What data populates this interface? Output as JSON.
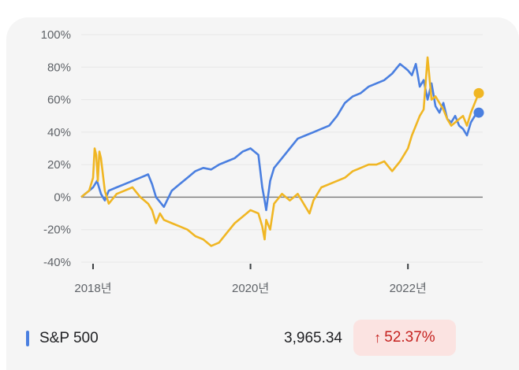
{
  "colors": {
    "series_blue": "#4a7fe0",
    "series_gold": "#f0b623",
    "grid": "#e6e6e6",
    "zero_line": "#777777"
  },
  "legend": {
    "name": "S&P 500",
    "value": "3,965.34",
    "change": "52.37%",
    "change_icon": "arrow-up-icon"
  },
  "chart_data": {
    "type": "line",
    "xlabel": "",
    "ylabel": "",
    "ylim": [
      -40,
      100
    ],
    "y_ticks": [
      "100%",
      "80%",
      "60%",
      "40%",
      "20%",
      "0%",
      "-20%",
      "-40%"
    ],
    "x_ticks": [
      {
        "label": "2018년",
        "x": 2018.0
      },
      {
        "label": "2020년",
        "x": 2020.0
      },
      {
        "label": "2022년",
        "x": 2022.0
      }
    ],
    "xlim": [
      2017.85,
      2022.95
    ],
    "grid": true,
    "series": [
      {
        "color": "#4a7fe0",
        "x": [
          2017.85,
          2017.9,
          2017.95,
          2018.0,
          2018.05,
          2018.1,
          2018.15,
          2018.2,
          2018.3,
          2018.4,
          2018.5,
          2018.6,
          2018.7,
          2018.75,
          2018.8,
          2018.85,
          2018.9,
          2019.0,
          2019.1,
          2019.2,
          2019.3,
          2019.4,
          2019.5,
          2019.6,
          2019.7,
          2019.8,
          2019.9,
          2020.0,
          2020.1,
          2020.15,
          2020.18,
          2020.2,
          2020.25,
          2020.3,
          2020.4,
          2020.5,
          2020.6,
          2020.7,
          2020.8,
          2020.9,
          2021.0,
          2021.1,
          2021.2,
          2021.3,
          2021.4,
          2021.5,
          2021.6,
          2021.7,
          2021.8,
          2021.9,
          2021.95,
          2022.0,
          2022.05,
          2022.1,
          2022.15,
          2022.2,
          2022.25,
          2022.3,
          2022.35,
          2022.4,
          2022.45,
          2022.5,
          2022.55,
          2022.6,
          2022.65,
          2022.7,
          2022.75,
          2022.8,
          2022.85,
          2022.9
        ],
        "values": [
          0,
          2,
          4,
          6,
          10,
          2,
          -2,
          4,
          6,
          8,
          10,
          12,
          14,
          8,
          0,
          -3,
          -6,
          4,
          8,
          12,
          16,
          18,
          17,
          20,
          22,
          24,
          28,
          30,
          26,
          6,
          -2,
          -8,
          10,
          18,
          24,
          30,
          36,
          38,
          40,
          42,
          44,
          50,
          58,
          62,
          64,
          68,
          70,
          72,
          76,
          82,
          80,
          78,
          75,
          82,
          68,
          72,
          60,
          70,
          56,
          52,
          58,
          48,
          46,
          50,
          44,
          42,
          38,
          46,
          50,
          52
        ]
      },
      {
        "color": "#f0b623",
        "x": [
          2017.85,
          2017.9,
          2017.95,
          2018.0,
          2018.02,
          2018.04,
          2018.06,
          2018.08,
          2018.1,
          2018.15,
          2018.2,
          2018.3,
          2018.4,
          2018.5,
          2018.6,
          2018.7,
          2018.75,
          2018.8,
          2018.85,
          2018.9,
          2019.0,
          2019.1,
          2019.2,
          2019.3,
          2019.4,
          2019.5,
          2019.6,
          2019.7,
          2019.8,
          2019.9,
          2020.0,
          2020.1,
          2020.15,
          2020.18,
          2020.2,
          2020.25,
          2020.3,
          2020.4,
          2020.5,
          2020.6,
          2020.7,
          2020.75,
          2020.8,
          2020.9,
          2021.0,
          2021.1,
          2021.2,
          2021.3,
          2021.4,
          2021.5,
          2021.6,
          2021.7,
          2021.8,
          2021.9,
          2021.95,
          2022.0,
          2022.05,
          2022.1,
          2022.15,
          2022.2,
          2022.25,
          2022.3,
          2022.35,
          2022.4,
          2022.45,
          2022.5,
          2022.55,
          2022.6,
          2022.65,
          2022.7,
          2022.75,
          2022.8,
          2022.85,
          2022.9
        ],
        "values": [
          0,
          2,
          4,
          12,
          30,
          26,
          10,
          28,
          24,
          4,
          -4,
          2,
          4,
          6,
          0,
          -4,
          -8,
          -16,
          -10,
          -14,
          -16,
          -18,
          -20,
          -24,
          -26,
          -30,
          -28,
          -22,
          -16,
          -12,
          -8,
          -10,
          -18,
          -26,
          -14,
          -20,
          -4,
          2,
          -2,
          2,
          -6,
          -10,
          -2,
          6,
          8,
          10,
          12,
          16,
          18,
          20,
          20,
          22,
          16,
          22,
          26,
          30,
          38,
          44,
          50,
          54,
          86,
          60,
          62,
          58,
          54,
          48,
          44,
          46,
          48,
          50,
          44,
          52,
          58,
          64
        ]
      }
    ]
  }
}
